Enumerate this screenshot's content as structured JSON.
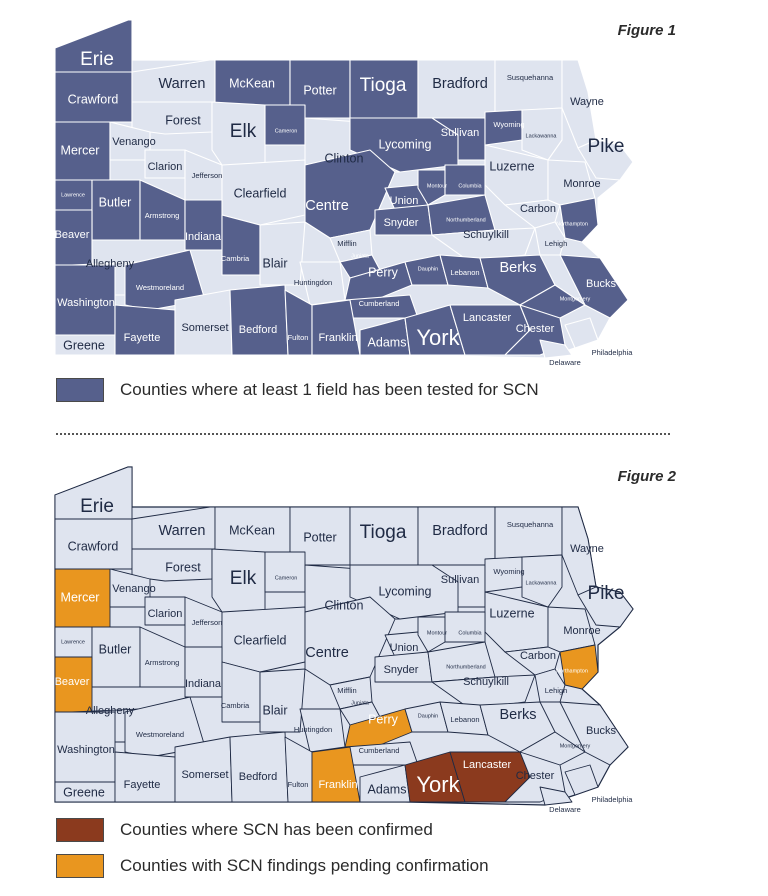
{
  "colors": {
    "tested": "#56608c",
    "untested": "#dfe4ef",
    "confirmed": "#8b3a1e",
    "pending": "#e9961f",
    "label_dark": "#1f2a44",
    "label_light": "#ffffff"
  },
  "figure1": {
    "title": "Figure 1",
    "legend": [
      {
        "color_key": "tested",
        "text": "Counties where at least 1 field has been tested for SCN"
      }
    ]
  },
  "figure2": {
    "title": "Figure 2",
    "legend": [
      {
        "color_key": "confirmed",
        "text": "Counties where SCN has been confirmed"
      },
      {
        "color_key": "pending",
        "text": "Counties with SCN findings pending confirmation"
      }
    ]
  },
  "counties": [
    {
      "name": "Erie",
      "size": "xl",
      "fig1": "tested",
      "fig2": "untested"
    },
    {
      "name": "Crawford",
      "size": "m",
      "fig1": "tested",
      "fig2": "untested"
    },
    {
      "name": "Warren",
      "size": "l",
      "fig1": "untested",
      "fig2": "untested"
    },
    {
      "name": "McKean",
      "size": "m",
      "fig1": "tested",
      "fig2": "untested"
    },
    {
      "name": "Potter",
      "size": "m",
      "fig1": "tested",
      "fig2": "untested"
    },
    {
      "name": "Tioga",
      "size": "xl",
      "fig1": "tested",
      "fig2": "untested"
    },
    {
      "name": "Bradford",
      "size": "l",
      "fig1": "untested",
      "fig2": "untested"
    },
    {
      "name": "Susquehanna",
      "size": "xs",
      "fig1": "untested",
      "fig2": "untested"
    },
    {
      "name": "Wayne",
      "size": "s",
      "fig1": "untested",
      "fig2": "untested"
    },
    {
      "name": "Forest",
      "size": "m",
      "fig1": "untested",
      "fig2": "untested"
    },
    {
      "name": "Elk",
      "size": "xl",
      "fig1": "untested",
      "fig2": "untested"
    },
    {
      "name": "Cameron",
      "size": "xxs",
      "fig1": "tested",
      "fig2": "untested"
    },
    {
      "name": "Sullivan",
      "size": "s",
      "fig1": "tested",
      "fig2": "untested"
    },
    {
      "name": "Wyoming",
      "size": "xs",
      "fig1": "tested",
      "fig2": "untested"
    },
    {
      "name": "Lackawanna",
      "size": "xxs",
      "fig1": "untested",
      "fig2": "untested"
    },
    {
      "name": "Pike",
      "size": "xl",
      "fig1": "untested",
      "fig2": "untested"
    },
    {
      "name": "Mercer",
      "size": "m",
      "fig1": "tested",
      "fig2": "pending"
    },
    {
      "name": "Venango",
      "size": "s",
      "fig1": "untested",
      "fig2": "untested"
    },
    {
      "name": "Clarion",
      "size": "s",
      "fig1": "untested",
      "fig2": "untested"
    },
    {
      "name": "Jefferson",
      "size": "xs",
      "fig1": "untested",
      "fig2": "untested"
    },
    {
      "name": "Clinton",
      "size": "m",
      "fig1": "untested",
      "fig2": "untested"
    },
    {
      "name": "Lycoming",
      "size": "m",
      "fig1": "tested",
      "fig2": "untested"
    },
    {
      "name": "Luzerne",
      "size": "m",
      "fig1": "untested",
      "fig2": "untested"
    },
    {
      "name": "Lawrence",
      "size": "xxs",
      "fig1": "tested",
      "fig2": "untested"
    },
    {
      "name": "Butler",
      "size": "m",
      "fig1": "tested",
      "fig2": "untested"
    },
    {
      "name": "Armstrong",
      "size": "xs",
      "fig1": "tested",
      "fig2": "untested"
    },
    {
      "name": "Clearfield",
      "size": "m",
      "fig1": "untested",
      "fig2": "untested"
    },
    {
      "name": "Centre",
      "size": "l",
      "fig1": "tested",
      "fig2": "untested"
    },
    {
      "name": "Union",
      "size": "s",
      "fig1": "tested",
      "fig2": "untested"
    },
    {
      "name": "Montour",
      "size": "xxs",
      "fig1": "tested",
      "fig2": "untested"
    },
    {
      "name": "Columbia",
      "size": "xxs",
      "fig1": "tested",
      "fig2": "untested"
    },
    {
      "name": "Monroe",
      "size": "s",
      "fig1": "untested",
      "fig2": "untested"
    },
    {
      "name": "Carbon",
      "size": "s",
      "fig1": "untested",
      "fig2": "untested"
    },
    {
      "name": "Snyder",
      "size": "s",
      "fig1": "tested",
      "fig2": "untested"
    },
    {
      "name": "Northumberland",
      "size": "xxs",
      "fig1": "tested",
      "fig2": "untested"
    },
    {
      "name": "Schuylkill",
      "size": "s",
      "fig1": "untested",
      "fig2": "untested"
    },
    {
      "name": "Northampton",
      "size": "xxs",
      "fig1": "tested",
      "fig2": "pending"
    },
    {
      "name": "Lehigh",
      "size": "xs",
      "fig1": "untested",
      "fig2": "untested"
    },
    {
      "name": "Beaver",
      "size": "s",
      "fig1": "tested",
      "fig2": "pending"
    },
    {
      "name": "Indiana",
      "size": "s",
      "fig1": "tested",
      "fig2": "untested"
    },
    {
      "name": "Cambria",
      "size": "xs",
      "fig1": "tested",
      "fig2": "untested"
    },
    {
      "name": "Blair",
      "size": "m",
      "fig1": "untested",
      "fig2": "untested"
    },
    {
      "name": "Mifflin",
      "size": "xs",
      "fig1": "untested",
      "fig2": "untested"
    },
    {
      "name": "Juniata",
      "size": "xxs",
      "fig1": "tested",
      "fig2": "untested"
    },
    {
      "name": "Perry",
      "size": "m",
      "fig1": "tested",
      "fig2": "pending"
    },
    {
      "name": "Dauphin",
      "size": "xxs",
      "fig1": "tested",
      "fig2": "untested"
    },
    {
      "name": "Lebanon",
      "size": "xs",
      "fig1": "tested",
      "fig2": "untested"
    },
    {
      "name": "Berks",
      "size": "l",
      "fig1": "tested",
      "fig2": "untested"
    },
    {
      "name": "Bucks",
      "size": "s",
      "fig1": "tested",
      "fig2": "untested"
    },
    {
      "name": "Allegheny",
      "size": "s",
      "fig1": "untested",
      "fig2": "untested"
    },
    {
      "name": "Westmoreland",
      "size": "xs",
      "fig1": "tested",
      "fig2": "untested"
    },
    {
      "name": "Huntingdon",
      "size": "xs",
      "fig1": "untested",
      "fig2": "untested"
    },
    {
      "name": "Cumberland",
      "size": "xs",
      "fig1": "tested",
      "fig2": "untested"
    },
    {
      "name": "Montgomery",
      "size": "xxs",
      "fig1": "tested",
      "fig2": "untested"
    },
    {
      "name": "Washington",
      "size": "s",
      "fig1": "tested",
      "fig2": "untested"
    },
    {
      "name": "Greene",
      "size": "m",
      "fig1": "untested",
      "fig2": "untested"
    },
    {
      "name": "Fayette",
      "size": "s",
      "fig1": "tested",
      "fig2": "untested"
    },
    {
      "name": "Somerset",
      "size": "s",
      "fig1": "untested",
      "fig2": "untested"
    },
    {
      "name": "Bedford",
      "size": "s",
      "fig1": "tested",
      "fig2": "untested"
    },
    {
      "name": "Fulton",
      "size": "xs",
      "fig1": "tested",
      "fig2": "untested"
    },
    {
      "name": "Franklin",
      "size": "s",
      "fig1": "tested",
      "fig2": "pending"
    },
    {
      "name": "Adams",
      "size": "m",
      "fig1": "tested",
      "fig2": "untested"
    },
    {
      "name": "York",
      "size": "xxl",
      "fig1": "tested",
      "fig2": "confirmed"
    },
    {
      "name": "Lancaster",
      "size": "s",
      "fig1": "tested",
      "fig2": "confirmed"
    },
    {
      "name": "Chester",
      "size": "s",
      "fig1": "tested",
      "fig2": "untested"
    },
    {
      "name": "Delaware",
      "size": "xs",
      "fig1": "untested",
      "fig2": "untested"
    },
    {
      "name": "Philadelphia",
      "size": "xs",
      "fig1": "untested",
      "fig2": "untested"
    }
  ]
}
